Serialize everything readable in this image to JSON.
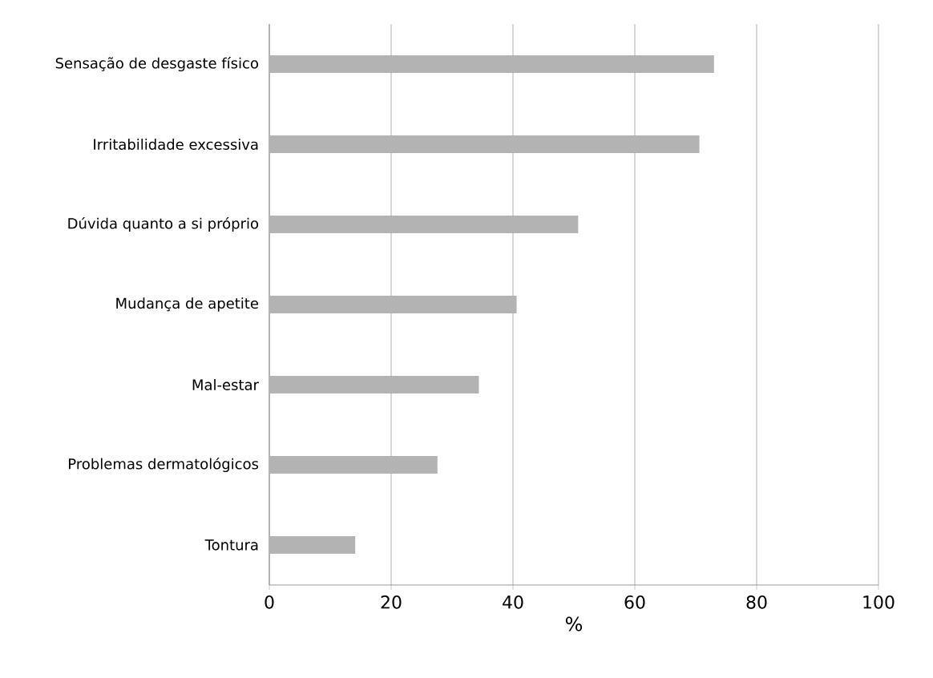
{
  "chart_data": {
    "type": "bar",
    "orientation": "horizontal",
    "xlabel": "%",
    "categories": [
      "Sensação de desgaste físico",
      "Irritabilidade excessiva",
      "Dúvida quanto a si próprio",
      "Mudança de apetite",
      "Mal-estar",
      "Problemas dermatológicos",
      "Tontura"
    ],
    "values": [
      73.0,
      70.6,
      50.7,
      40.6,
      34.4,
      27.6,
      14.1
    ],
    "color": "#b3b3b3",
    "xlim": [
      0,
      100
    ],
    "xticks": [
      0,
      20,
      40,
      60,
      80,
      100
    ],
    "grid": "x"
  }
}
